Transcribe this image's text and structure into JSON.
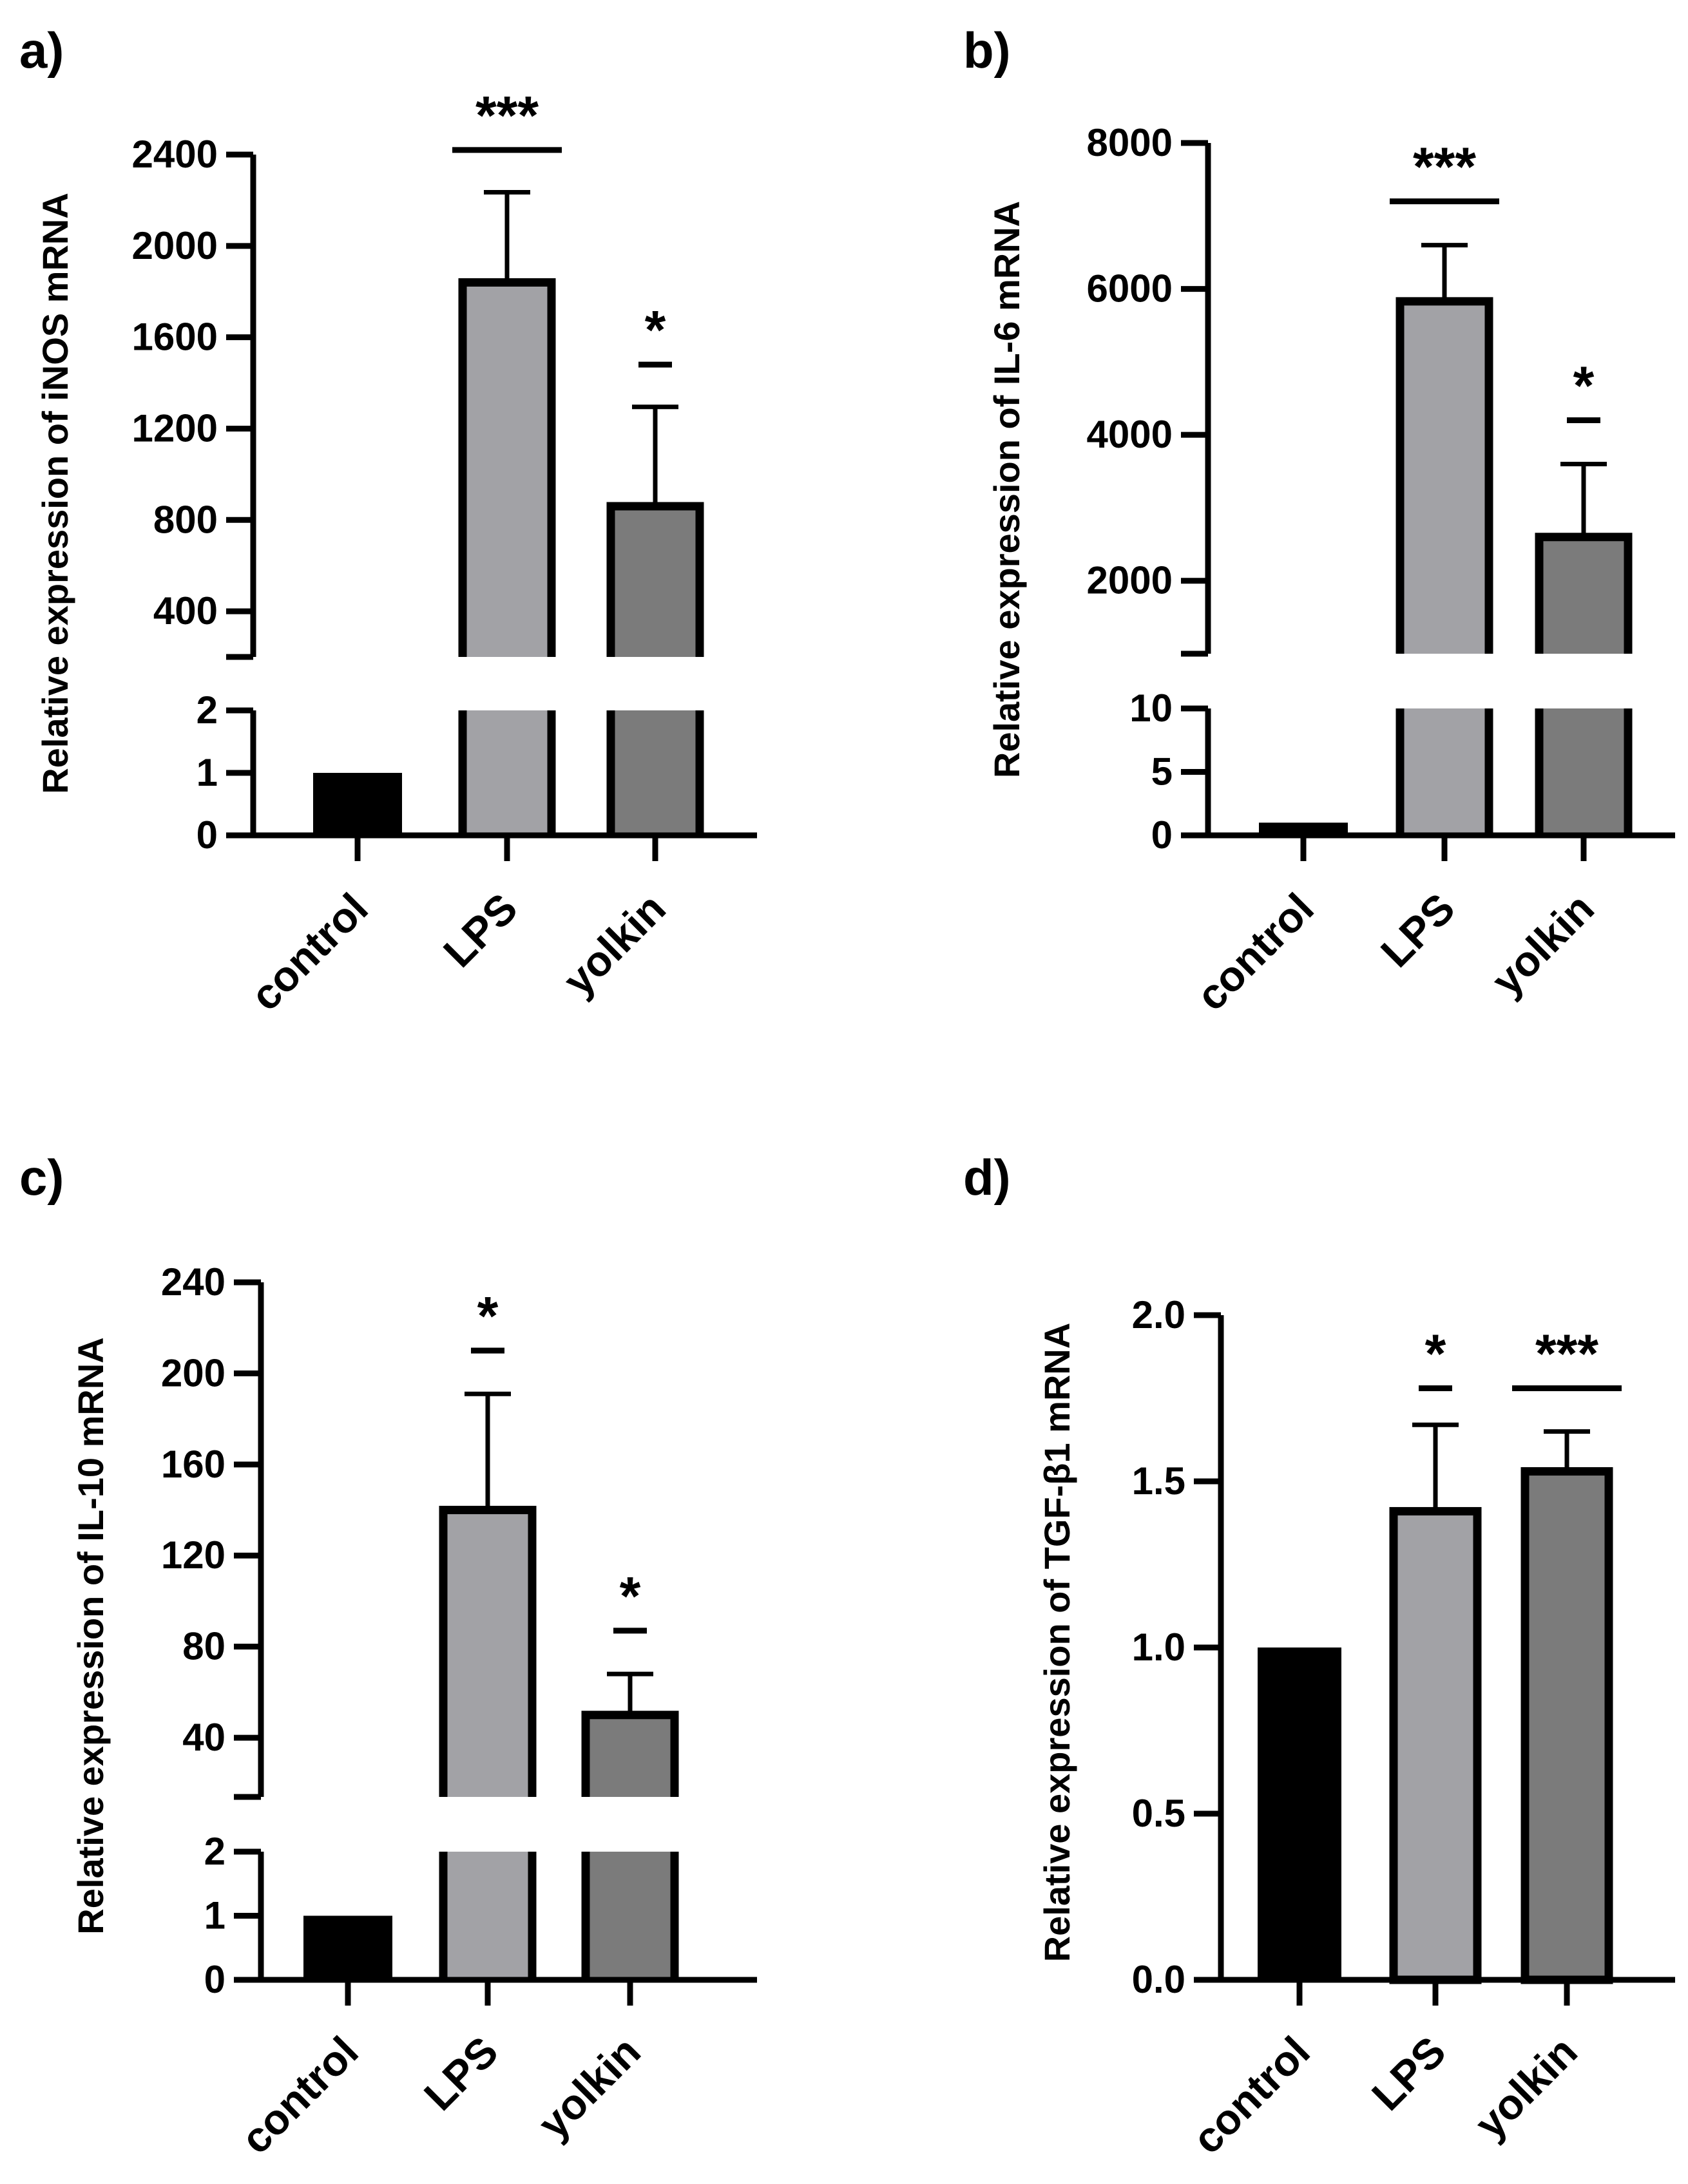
{
  "chart_data": [
    {
      "panel": "a)",
      "type": "bar",
      "title": "",
      "xlabel": "",
      "ylabel": "Relative expression of iNOS mRNA",
      "categories": [
        "control",
        "LPS",
        "yolkin"
      ],
      "values": [
        1,
        1840,
        860
      ],
      "errors_upper": [
        0,
        2235,
        1295
      ],
      "colors": [
        "#000000",
        "#a2a2a6",
        "#7b7b7b"
      ],
      "axis_break": true,
      "lower_range": [
        0,
        2
      ],
      "upper_range": [
        200,
        2400
      ],
      "lower_ticks": [
        0,
        1,
        2
      ],
      "upper_ticks": [
        400,
        800,
        1200,
        1600,
        2000,
        2400
      ],
      "lower_tick_labels": [
        "0",
        "1",
        "2"
      ],
      "upper_tick_labels": [
        "400",
        "800",
        "1200",
        "1600",
        "2000",
        "2400"
      ],
      "significance": [
        {
          "category": "LPS",
          "label": "***",
          "line_value": 2420
        },
        {
          "category": "yolkin",
          "label": "*",
          "line_value": 1480
        }
      ]
    },
    {
      "panel": "b)",
      "type": "bar",
      "title": "",
      "xlabel": "",
      "ylabel": "Relative expression of IL-6 mRNA",
      "categories": [
        "control",
        "LPS",
        "yolkin"
      ],
      "values": [
        1,
        5830,
        2600
      ],
      "errors_upper": [
        0,
        6600,
        3600
      ],
      "colors": [
        "#000000",
        "#a2a2a6",
        "#7b7b7b"
      ],
      "axis_break": true,
      "lower_range": [
        0,
        10
      ],
      "upper_range": [
        1000,
        8000
      ],
      "lower_ticks": [
        0,
        5,
        10
      ],
      "upper_ticks": [
        2000,
        4000,
        6000,
        8000
      ],
      "lower_tick_labels": [
        "0",
        "5",
        "10"
      ],
      "upper_tick_labels": [
        "2000",
        "4000",
        "6000",
        "8000"
      ],
      "significance": [
        {
          "category": "LPS",
          "label": "***",
          "line_value": 7200
        },
        {
          "category": "yolkin",
          "label": "*",
          "line_value": 4200
        }
      ]
    },
    {
      "panel": "c)",
      "type": "bar",
      "title": "",
      "xlabel": "",
      "ylabel": "Relative expression of IL-10 mRNA",
      "categories": [
        "control",
        "LPS",
        "yolkin"
      ],
      "values": [
        1,
        140,
        50
      ],
      "errors_upper": [
        0,
        191,
        68
      ],
      "colors": [
        "#000000",
        "#a2a2a6",
        "#7b7b7b"
      ],
      "axis_break": true,
      "lower_range": [
        0,
        2
      ],
      "upper_range": [
        14,
        240
      ],
      "lower_ticks": [
        0,
        1,
        2
      ],
      "upper_ticks": [
        40,
        80,
        120,
        160,
        200,
        240
      ],
      "lower_tick_labels": [
        "0",
        "1",
        "2"
      ],
      "upper_tick_labels": [
        "40",
        "80",
        "120",
        "160",
        "200",
        "240"
      ],
      "significance": [
        {
          "category": "LPS",
          "label": "*",
          "line_value": 210
        },
        {
          "category": "yolkin",
          "label": "*",
          "line_value": 87
        }
      ]
    },
    {
      "panel": "d)",
      "type": "bar",
      "title": "",
      "xlabel": "",
      "ylabel": "Relative expression of TGF-β1 mRNA",
      "categories": [
        "control",
        "LPS",
        "yolkin"
      ],
      "values": [
        1.0,
        1.41,
        1.53
      ],
      "errors_upper": [
        0,
        1.67,
        1.65
      ],
      "colors": [
        "#000000",
        "#a2a2a6",
        "#7b7b7b"
      ],
      "axis_break": false,
      "ylim": [
        0,
        2.0
      ],
      "ticks": [
        0.0,
        0.5,
        1.0,
        1.5,
        2.0
      ],
      "tick_labels": [
        "0.0",
        "0.5",
        "1.0",
        "1.5",
        "2.0"
      ],
      "significance": [
        {
          "category": "LPS",
          "label": "*",
          "line_value": 1.78
        },
        {
          "category": "yolkin",
          "label": "***",
          "line_value": 1.78
        }
      ]
    }
  ]
}
